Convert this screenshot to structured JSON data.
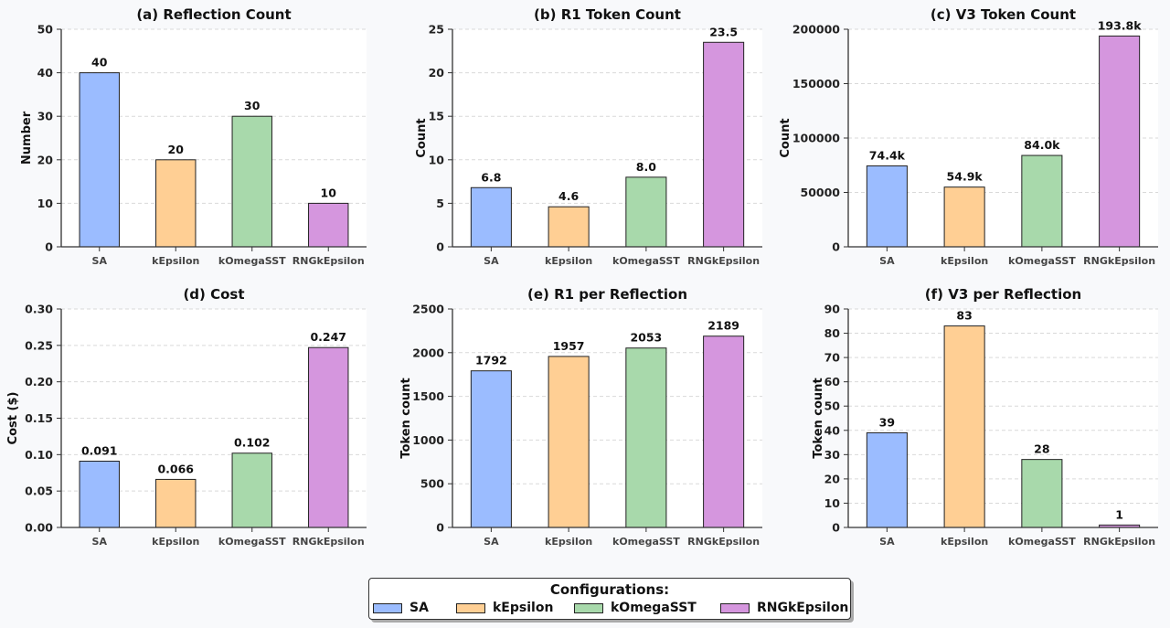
{
  "legend": {
    "title": "Configurations:",
    "items": [
      {
        "label": "SA",
        "color": "#9bbcff"
      },
      {
        "label": "kEpsilon",
        "color": "#ffcf94"
      },
      {
        "label": "kOmegaSST",
        "color": "#a8d9ab"
      },
      {
        "label": "RNGkEpsilon",
        "color": "#d596de"
      }
    ]
  },
  "chart_data": [
    {
      "type": "bar",
      "title": "(a) Reflection Count",
      "ylabel": "Number",
      "categories": [
        "SA",
        "kEpsilon",
        "kOmegaSST",
        "RNGkEpsilon"
      ],
      "values": [
        40,
        20,
        30,
        10
      ],
      "value_labels": [
        "40",
        "20",
        "30",
        "10"
      ],
      "ylim": [
        0,
        50
      ],
      "yticks": [
        0,
        10,
        20,
        30,
        40,
        50
      ],
      "ytick_labels": [
        "0",
        "10",
        "20",
        "30",
        "40",
        "50"
      ],
      "grid": true
    },
    {
      "type": "bar",
      "title": "(b) R1 Token Count",
      "ylabel": "Count",
      "categories": [
        "SA",
        "kEpsilon",
        "kOmegaSST",
        "RNGkEpsilon"
      ],
      "values": [
        6.8,
        4.6,
        8.0,
        23.5
      ],
      "value_labels": [
        "6.8",
        "4.6",
        "8.0",
        "23.5"
      ],
      "ylim": [
        0,
        25
      ],
      "yticks": [
        0,
        5,
        10,
        15,
        20,
        25
      ],
      "ytick_labels": [
        "0",
        "5",
        "10",
        "15",
        "20",
        "25"
      ],
      "grid": true
    },
    {
      "type": "bar",
      "title": "(c) V3 Token Count",
      "ylabel": "Count",
      "categories": [
        "SA",
        "kEpsilon",
        "kOmegaSST",
        "RNGkEpsilon"
      ],
      "values": [
        74400,
        54900,
        84000,
        193800
      ],
      "value_labels": [
        "74.4k",
        "54.9k",
        "84.0k",
        "193.8k"
      ],
      "ylim": [
        0,
        200000
      ],
      "yticks": [
        0,
        50000,
        100000,
        150000,
        200000
      ],
      "ytick_labels": [
        "0",
        "50000",
        "100000",
        "150000",
        "200000"
      ],
      "grid": true
    },
    {
      "type": "bar",
      "title": "(d) Cost",
      "ylabel": "Cost ($)",
      "categories": [
        "SA",
        "kEpsilon",
        "kOmegaSST",
        "RNGkEpsilon"
      ],
      "values": [
        0.091,
        0.066,
        0.102,
        0.247
      ],
      "value_labels": [
        "0.091",
        "0.066",
        "0.102",
        "0.247"
      ],
      "ylim": [
        0,
        0.3
      ],
      "yticks": [
        0,
        0.05,
        0.1,
        0.15,
        0.2,
        0.25,
        0.3
      ],
      "ytick_labels": [
        "0.00",
        "0.05",
        "0.10",
        "0.15",
        "0.20",
        "0.25",
        "0.30"
      ],
      "grid": true
    },
    {
      "type": "bar",
      "title": "(e) R1 per Reflection",
      "ylabel": "Token count",
      "categories": [
        "SA",
        "kEpsilon",
        "kOmegaSST",
        "RNGkEpsilon"
      ],
      "values": [
        1792,
        1957,
        2053,
        2189
      ],
      "value_labels": [
        "1792",
        "1957",
        "2053",
        "2189"
      ],
      "ylim": [
        0,
        2500
      ],
      "yticks": [
        0,
        500,
        1000,
        1500,
        2000,
        2500
      ],
      "ytick_labels": [
        "0",
        "500",
        "1000",
        "1500",
        "2000",
        "2500"
      ],
      "grid": true
    },
    {
      "type": "bar",
      "title": "(f) V3 per Reflection",
      "ylabel": "Token count",
      "categories": [
        "SA",
        "kEpsilon",
        "kOmegaSST",
        "RNGkEpsilon"
      ],
      "values": [
        39,
        83,
        28,
        1
      ],
      "value_labels": [
        "39",
        "83",
        "28",
        "1"
      ],
      "ylim": [
        0,
        90
      ],
      "yticks": [
        0,
        10,
        20,
        30,
        40,
        50,
        60,
        70,
        80,
        90
      ],
      "ytick_labels": [
        "0",
        "10",
        "20",
        "30",
        "40",
        "50",
        "60",
        "70",
        "80",
        "90"
      ],
      "grid": true
    }
  ]
}
